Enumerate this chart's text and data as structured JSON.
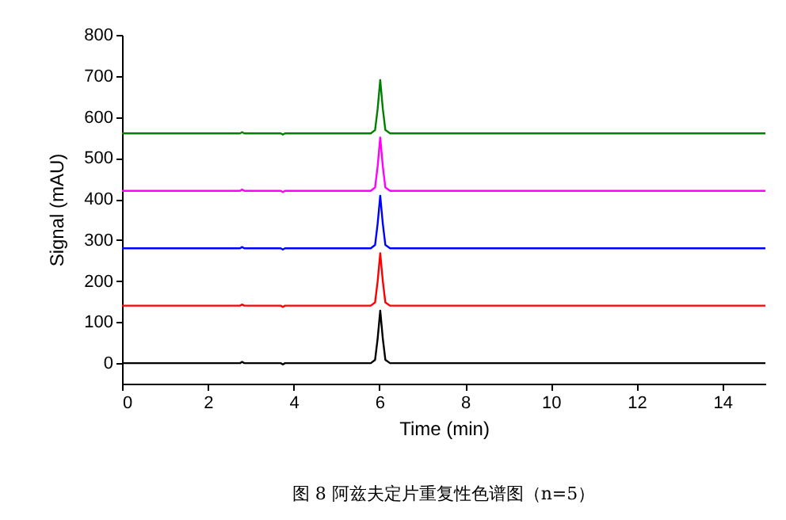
{
  "chart_data": {
    "type": "line",
    "xlabel": "Time (min)",
    "ylabel": "Signal (mAU)",
    "annotations": [
      "图 8 阿兹夫定片重复性色谱图（n=5）"
    ],
    "x": [
      0,
      2.75,
      2.8,
      2.85,
      3.7,
      3.75,
      3.8,
      5.8,
      5.9,
      5.96,
      6.02,
      6.08,
      6.14,
      6.25,
      15
    ],
    "series": [
      {
        "color": "#000000",
        "values": [
          0,
          0,
          3,
          0,
          0,
          -3,
          0,
          0,
          8,
          60,
          128,
          60,
          8,
          0,
          0
        ]
      },
      {
        "color": "#ff0000",
        "values": [
          140,
          140,
          143,
          140,
          140,
          137,
          140,
          140,
          148,
          200,
          268,
          200,
          148,
          140,
          140
        ]
      },
      {
        "color": "#0000ff",
        "values": [
          280,
          280,
          283,
          280,
          280,
          277,
          280,
          280,
          288,
          340,
          408,
          340,
          288,
          280,
          280
        ]
      },
      {
        "color": "#ff00ff",
        "values": [
          420,
          420,
          423,
          420,
          420,
          417,
          420,
          420,
          428,
          480,
          550,
          480,
          428,
          420,
          420
        ]
      },
      {
        "color": "#008000",
        "values": [
          560,
          560,
          563,
          560,
          560,
          557,
          560,
          560,
          568,
          620,
          690,
          620,
          568,
          560,
          560
        ]
      }
    ],
    "xlim": [
      0,
      15
    ],
    "xticks": [
      0,
      2,
      4,
      6,
      8,
      10,
      12,
      14
    ],
    "ylim": [
      -50,
      800
    ],
    "yticks": [
      0,
      100,
      200,
      300,
      400,
      500,
      600,
      700,
      800
    ],
    "grid": false,
    "marker": "none",
    "line_style": "solid"
  }
}
